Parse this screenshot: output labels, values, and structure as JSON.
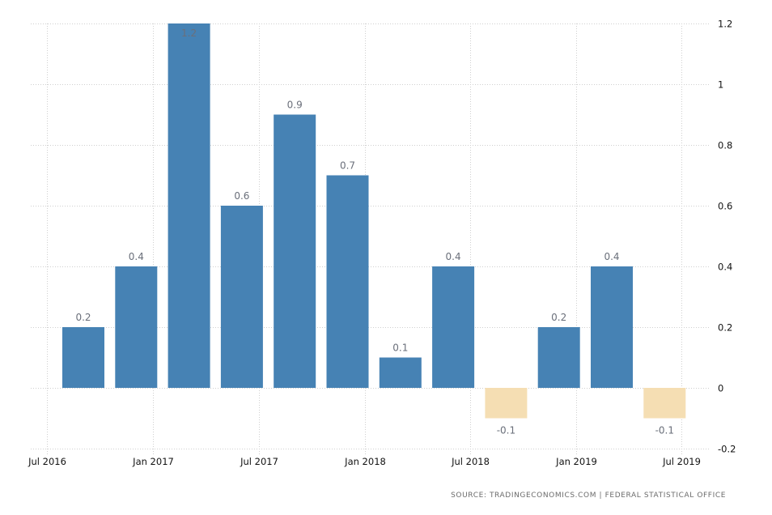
{
  "chart_data": {
    "type": "bar",
    "title": "",
    "xlabel": "",
    "ylabel": "",
    "categories": [
      "Q3 2016",
      "Q4 2016",
      "Q1 2017",
      "Q2 2017",
      "Q3 2017",
      "Q4 2017",
      "Q1 2018",
      "Q2 2018",
      "Q3 2018",
      "Q4 2018",
      "Q1 2019",
      "Q2 2019"
    ],
    "values": [
      0.2,
      0.4,
      1.2,
      0.6,
      0.9,
      0.7,
      0.1,
      0.4,
      -0.1,
      0.2,
      0.4,
      -0.1
    ],
    "data_labels": [
      "0.2",
      "0.4",
      "1.2",
      "0.6",
      "0.9",
      "0.7",
      "0.1",
      "0.4",
      "-0.1",
      "0.2",
      "0.4",
      "-0.1"
    ],
    "ylim": [
      -0.2,
      1.2
    ],
    "y_ticks": [
      1.2,
      1,
      0.8,
      0.6,
      0.4,
      0.2,
      0,
      -0.2
    ],
    "y_tick_labels": [
      "1.2",
      "1",
      "0.8",
      "0.6",
      "0.4",
      "0.2",
      "0",
      "-0.2"
    ],
    "y_axis_side": "right",
    "x_tick_labels": [
      "Jul 2016",
      "Jan 2017",
      "Jul 2017",
      "Jan 2018",
      "Jul 2018",
      "Jan 2019",
      "Jul 2019"
    ],
    "grid": true,
    "legend": "none",
    "colors": {
      "positive": "#4682b4",
      "negative": "#f5deb3",
      "grid": "#cfcfcf"
    },
    "source": "SOURCE: TRADINGECONOMICS.COM  |  FEDERAL STATISTICAL OFFICE"
  }
}
